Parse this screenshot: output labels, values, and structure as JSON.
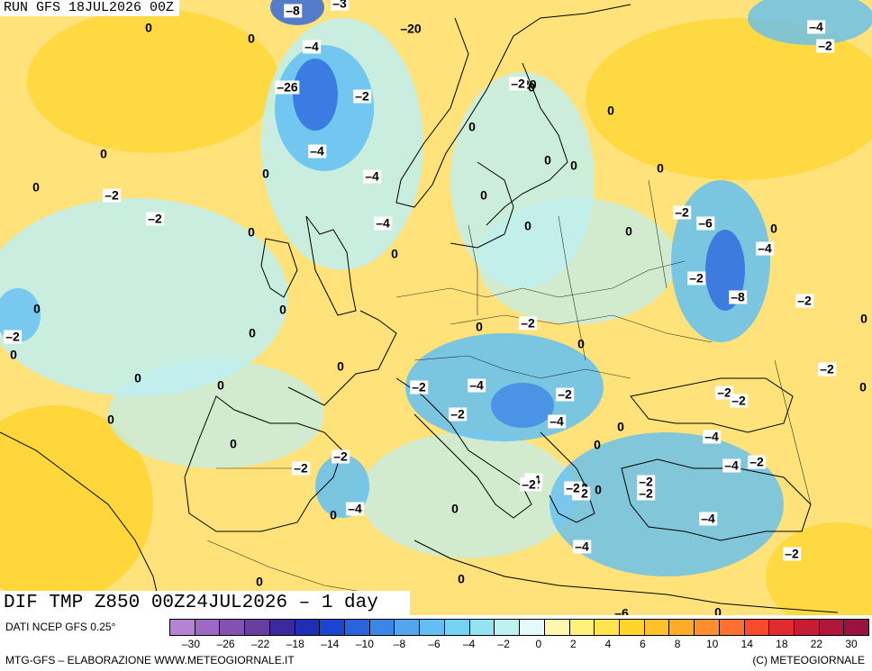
{
  "header": {
    "run_label": "RUN GFS 18JUL2026 00Z"
  },
  "footer": {
    "field_label": "DIF TMP Z850 00Z24JUL2026 – 1 day",
    "source_label": "DATI NCEP GFS 0.25°",
    "credit_left": "MTG-GFS – ELABORAZIONE WWW.METEOGIORNALE.IT",
    "credit_right": "(C) METEOGIORNALE"
  },
  "colorbar": {
    "colors": [
      "#b483d3",
      "#9d69c4",
      "#8352b0",
      "#6a3e9e",
      "#3a2a9c",
      "#1f2fb5",
      "#1c45cf",
      "#2a63dd",
      "#3e86e6",
      "#52a6ee",
      "#63bff2",
      "#74d2f3",
      "#93e3f2",
      "#bff0f2",
      "#e4fafa",
      "#fff7b0",
      "#fff07a",
      "#ffe44c",
      "#ffd52a",
      "#ffc12a",
      "#ffab28",
      "#ff8f2c",
      "#ff6f2e",
      "#f74b2c",
      "#e02c2e",
      "#c81c36",
      "#b0163c",
      "#9a1240"
    ],
    "tick_labels": [
      "–30",
      "–26",
      "–22",
      "–18",
      "–14",
      "–10",
      "–8",
      "–6",
      "–4",
      "–2",
      "0",
      "2",
      "4",
      "6",
      "8",
      "10",
      "14",
      "18",
      "22",
      "30"
    ]
  },
  "map_labels": [
    {
      "text": "0",
      "boxed": false
    },
    {
      "text": "–8",
      "boxed": true
    },
    {
      "text": "–3",
      "boxed": true
    },
    {
      "text": "0",
      "boxed": false
    },
    {
      "text": "–4",
      "boxed": true
    },
    {
      "text": "–20",
      "boxed": false
    },
    {
      "text": "–4",
      "boxed": true
    },
    {
      "text": "–2",
      "boxed": true
    },
    {
      "text": "–26",
      "boxed": true
    },
    {
      "text": "–2",
      "boxed": true
    },
    {
      "text": "–20",
      "boxed": false
    },
    {
      "text": "0",
      "boxed": false
    },
    {
      "text": "0",
      "boxed": false
    },
    {
      "text": "–4",
      "boxed": true
    },
    {
      "text": "0",
      "boxed": false
    },
    {
      "text": "0",
      "boxed": false
    },
    {
      "text": "0",
      "boxed": false
    },
    {
      "text": "0",
      "boxed": false
    },
    {
      "text": "–4",
      "boxed": true
    },
    {
      "text": "0",
      "boxed": false
    },
    {
      "text": "–2",
      "boxed": true
    },
    {
      "text": "0",
      "boxed": false
    },
    {
      "text": "–2",
      "boxed": true
    },
    {
      "text": "0",
      "boxed": false
    },
    {
      "text": "–2",
      "boxed": true
    },
    {
      "text": "–6",
      "boxed": true
    },
    {
      "text": "0",
      "boxed": false
    },
    {
      "text": "0",
      "boxed": false
    },
    {
      "text": "0",
      "boxed": false
    },
    {
      "text": "0",
      "boxed": false
    },
    {
      "text": "–4",
      "boxed": true
    },
    {
      "text": "–4",
      "boxed": true
    },
    {
      "text": "–8",
      "boxed": true
    },
    {
      "text": "–2",
      "boxed": true
    },
    {
      "text": "0",
      "boxed": false
    },
    {
      "text": "0",
      "boxed": false
    },
    {
      "text": "0",
      "boxed": false
    },
    {
      "text": "–2",
      "boxed": true
    },
    {
      "text": "–2",
      "boxed": true
    },
    {
      "text": "0",
      "boxed": false
    },
    {
      "text": "0",
      "boxed": false
    },
    {
      "text": "0",
      "boxed": false
    },
    {
      "text": "0",
      "boxed": false
    },
    {
      "text": "0",
      "boxed": false
    },
    {
      "text": "0",
      "boxed": false
    },
    {
      "text": "0",
      "boxed": false
    },
    {
      "text": "–2",
      "boxed": true
    },
    {
      "text": "–2",
      "boxed": true
    },
    {
      "text": "0",
      "boxed": false
    },
    {
      "text": "–2",
      "boxed": true
    },
    {
      "text": "–4",
      "boxed": true
    },
    {
      "text": "–2",
      "boxed": true
    },
    {
      "text": "–2",
      "boxed": true
    },
    {
      "text": "–2",
      "boxed": true
    },
    {
      "text": "–2",
      "boxed": true
    },
    {
      "text": "0",
      "boxed": false
    },
    {
      "text": "–4",
      "boxed": true
    },
    {
      "text": "0",
      "boxed": false
    },
    {
      "text": "0",
      "boxed": false
    },
    {
      "text": "–4",
      "boxed": true
    },
    {
      "text": "0",
      "boxed": false
    },
    {
      "text": "–2",
      "boxed": true
    },
    {
      "text": "–2",
      "boxed": true
    },
    {
      "text": "–4",
      "boxed": true
    },
    {
      "text": "–2",
      "boxed": true
    },
    {
      "text": "0",
      "boxed": false
    },
    {
      "text": "–2",
      "boxed": true
    },
    {
      "text": "0",
      "boxed": false
    },
    {
      "text": "0",
      "boxed": false
    },
    {
      "text": "–4",
      "boxed": true
    },
    {
      "text": "0",
      "boxed": false
    },
    {
      "text": "–2",
      "boxed": true
    },
    {
      "text": "–2",
      "boxed": true
    },
    {
      "text": "–2",
      "boxed": true
    },
    {
      "text": "0",
      "boxed": false
    },
    {
      "text": "–2",
      "boxed": true
    },
    {
      "text": "–4",
      "boxed": true
    },
    {
      "text": "–4",
      "boxed": true
    },
    {
      "text": "–4",
      "boxed": true
    },
    {
      "text": "0",
      "boxed": false
    },
    {
      "text": "–2",
      "boxed": true
    },
    {
      "text": "–2",
      "boxed": true
    },
    {
      "text": "0",
      "boxed": false
    },
    {
      "text": "0",
      "boxed": false
    },
    {
      "text": "–6",
      "boxed": false
    },
    {
      "text": "0",
      "boxed": false
    },
    {
      "text": "–2",
      "boxed": true
    }
  ]
}
